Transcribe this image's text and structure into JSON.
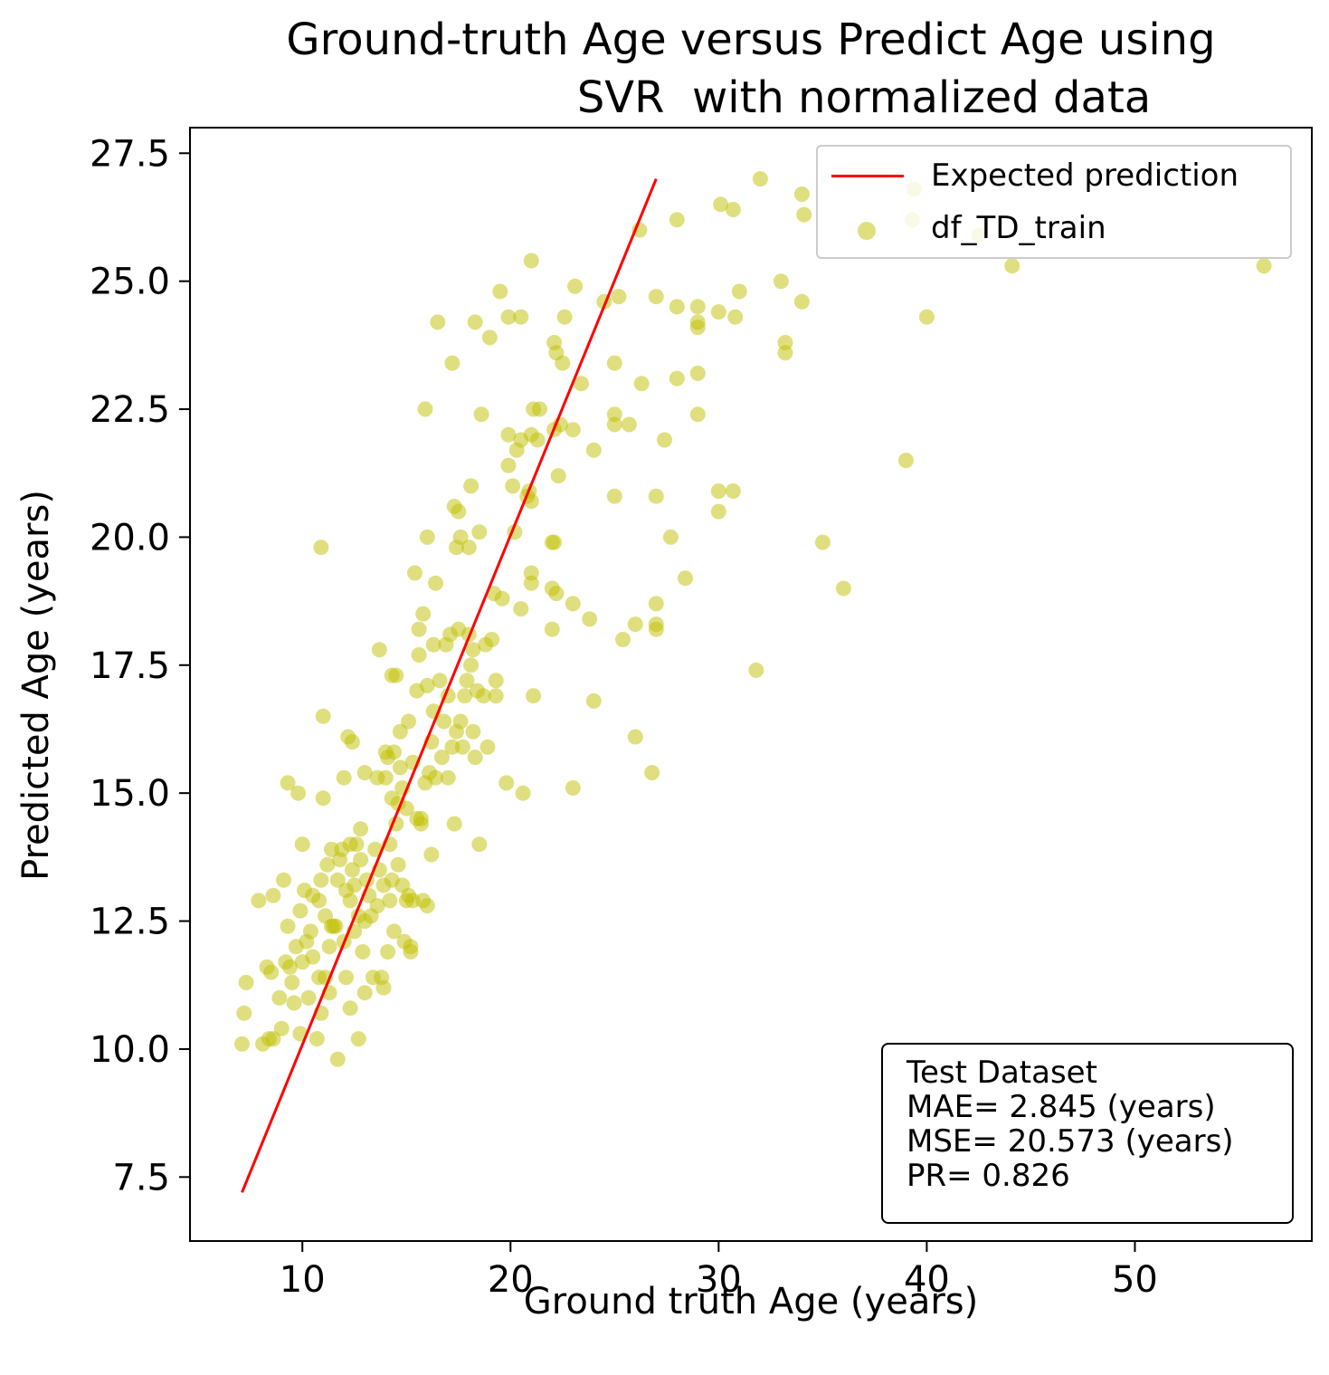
{
  "chart_data": {
    "type": "scatter",
    "title_lines": [
      "Ground-truth Age versus Predict Age using",
      "SVR  with normalized data"
    ],
    "xlabel": "Ground truth Age (years)",
    "ylabel": "Predicted Age (years)",
    "xlim": [
      4.6,
      58.5
    ],
    "ylim": [
      6.25,
      28.0
    ],
    "x_ticks": [
      10,
      20,
      30,
      40,
      50
    ],
    "y_ticks": [
      7.5,
      10.0,
      12.5,
      15.0,
      17.5,
      20.0,
      22.5,
      25.0,
      27.5
    ],
    "grid": false,
    "legend_position": "upper right",
    "legend": [
      "Expected prediction",
      "df_TD_train"
    ],
    "colors": {
      "line": "#ff0000",
      "points": "#bfbf00"
    },
    "line": {
      "name": "Expected prediction",
      "x": [
        7.1,
        27.0
      ],
      "y": [
        7.2,
        27.0
      ]
    },
    "series": [
      {
        "name": "df_TD_train",
        "points": [
          [
            7.1,
            10.1
          ],
          [
            7.2,
            10.7
          ],
          [
            7.3,
            11.3
          ],
          [
            7.9,
            12.9
          ],
          [
            8.1,
            10.1
          ],
          [
            8.3,
            11.6
          ],
          [
            8.4,
            10.2
          ],
          [
            8.5,
            11.5
          ],
          [
            8.6,
            13.0
          ],
          [
            8.6,
            10.2
          ],
          [
            8.9,
            11.0
          ],
          [
            9.0,
            10.4
          ],
          [
            9.1,
            13.3
          ],
          [
            9.2,
            11.7
          ],
          [
            9.3,
            12.4
          ],
          [
            9.3,
            15.2
          ],
          [
            9.4,
            11.6
          ],
          [
            9.5,
            11.3
          ],
          [
            9.6,
            10.9
          ],
          [
            9.7,
            12.0
          ],
          [
            9.8,
            15.0
          ],
          [
            9.9,
            10.3
          ],
          [
            9.9,
            12.7
          ],
          [
            10.0,
            11.7
          ],
          [
            10.0,
            14.0
          ],
          [
            10.1,
            13.1
          ],
          [
            10.2,
            12.1
          ],
          [
            10.3,
            11.0
          ],
          [
            10.4,
            12.3
          ],
          [
            10.5,
            13.0
          ],
          [
            10.5,
            11.8
          ],
          [
            10.7,
            10.2
          ],
          [
            10.8,
            11.4
          ],
          [
            10.8,
            12.9
          ],
          [
            10.9,
            10.7
          ],
          [
            10.9,
            13.3
          ],
          [
            10.9,
            19.8
          ],
          [
            11.0,
            14.9
          ],
          [
            11.0,
            16.5
          ],
          [
            11.1,
            12.6
          ],
          [
            11.1,
            11.4
          ],
          [
            11.2,
            13.6
          ],
          [
            11.3,
            12.0
          ],
          [
            11.3,
            11.1
          ],
          [
            11.4,
            13.9
          ],
          [
            11.4,
            12.4
          ],
          [
            11.5,
            12.4
          ],
          [
            11.6,
            12.4
          ],
          [
            11.7,
            9.8
          ],
          [
            11.7,
            13.3
          ],
          [
            11.8,
            13.7
          ],
          [
            11.9,
            13.9
          ],
          [
            12.0,
            12.1
          ],
          [
            12.0,
            15.3
          ],
          [
            12.1,
            11.4
          ],
          [
            12.1,
            13.1
          ],
          [
            12.2,
            16.1
          ],
          [
            12.3,
            14.0
          ],
          [
            12.3,
            12.9
          ],
          [
            12.3,
            10.8
          ],
          [
            12.4,
            13.5
          ],
          [
            12.4,
            16.0
          ],
          [
            12.5,
            12.3
          ],
          [
            12.5,
            13.2
          ],
          [
            12.6,
            14.0
          ],
          [
            12.7,
            12.6
          ],
          [
            12.7,
            10.2
          ],
          [
            12.8,
            13.7
          ],
          [
            12.8,
            14.3
          ],
          [
            12.9,
            11.9
          ],
          [
            13.0,
            11.1
          ],
          [
            13.0,
            12.5
          ],
          [
            13.0,
            15.4
          ],
          [
            13.1,
            13.3
          ],
          [
            13.2,
            13.0
          ],
          [
            13.3,
            12.6
          ],
          [
            13.4,
            11.4
          ],
          [
            13.5,
            13.9
          ],
          [
            13.6,
            12.8
          ],
          [
            13.6,
            15.3
          ],
          [
            13.7,
            17.8
          ],
          [
            13.7,
            13.5
          ],
          [
            13.8,
            11.4
          ],
          [
            13.9,
            11.2
          ],
          [
            13.9,
            13.2
          ],
          [
            14.0,
            15.8
          ],
          [
            14.0,
            15.3
          ],
          [
            14.1,
            11.9
          ],
          [
            14.1,
            15.7
          ],
          [
            14.2,
            12.9
          ],
          [
            14.2,
            14.0
          ],
          [
            14.3,
            17.3
          ],
          [
            14.3,
            13.3
          ],
          [
            14.3,
            14.9
          ],
          [
            14.4,
            12.3
          ],
          [
            14.4,
            15.8
          ],
          [
            14.5,
            17.3
          ],
          [
            14.5,
            14.4
          ],
          [
            14.6,
            14.8
          ],
          [
            14.6,
            13.6
          ],
          [
            14.7,
            15.5
          ],
          [
            14.7,
            16.2
          ],
          [
            14.8,
            13.2
          ],
          [
            14.8,
            15.1
          ],
          [
            14.9,
            12.1
          ],
          [
            15.0,
            12.9
          ],
          [
            15.0,
            14.7
          ],
          [
            15.1,
            13.0
          ],
          [
            15.1,
            16.4
          ],
          [
            15.2,
            12.0
          ],
          [
            15.2,
            11.9
          ],
          [
            15.3,
            15.6
          ],
          [
            15.3,
            12.9
          ],
          [
            15.4,
            19.3
          ],
          [
            15.5,
            14.5
          ],
          [
            15.5,
            17.0
          ],
          [
            15.6,
            18.2
          ],
          [
            15.6,
            17.7
          ],
          [
            15.7,
            14.4
          ],
          [
            15.7,
            14.5
          ],
          [
            15.8,
            12.9
          ],
          [
            15.8,
            18.5
          ],
          [
            15.9,
            15.2
          ],
          [
            15.9,
            22.5
          ],
          [
            16.0,
            12.8
          ],
          [
            16.0,
            17.1
          ],
          [
            16.0,
            20.0
          ],
          [
            16.1,
            15.4
          ],
          [
            16.2,
            13.8
          ],
          [
            16.2,
            16.0
          ],
          [
            16.3,
            17.9
          ],
          [
            16.3,
            16.6
          ],
          [
            16.4,
            19.1
          ],
          [
            16.4,
            15.3
          ],
          [
            16.5,
            24.2
          ],
          [
            16.6,
            17.2
          ],
          [
            16.7,
            15.7
          ],
          [
            16.8,
            16.4
          ],
          [
            16.9,
            17.9
          ],
          [
            17.0,
            16.9
          ],
          [
            17.0,
            15.3
          ],
          [
            17.1,
            18.1
          ],
          [
            17.2,
            23.4
          ],
          [
            17.2,
            15.9
          ],
          [
            17.3,
            20.6
          ],
          [
            17.3,
            14.4
          ],
          [
            17.4,
            16.2
          ],
          [
            17.4,
            19.8
          ],
          [
            17.5,
            20.5
          ],
          [
            17.5,
            18.2
          ],
          [
            17.6,
            20.0
          ],
          [
            17.6,
            16.4
          ],
          [
            17.7,
            15.9
          ],
          [
            17.8,
            16.9
          ],
          [
            17.9,
            17.2
          ],
          [
            18.0,
            19.8
          ],
          [
            18.0,
            18.1
          ],
          [
            18.1,
            21.0
          ],
          [
            18.1,
            17.5
          ],
          [
            18.2,
            16.2
          ],
          [
            18.2,
            17.8
          ],
          [
            18.3,
            24.2
          ],
          [
            18.3,
            15.7
          ],
          [
            18.4,
            17.0
          ],
          [
            18.5,
            20.1
          ],
          [
            18.5,
            14.0
          ],
          [
            18.6,
            22.4
          ],
          [
            18.7,
            16.9
          ],
          [
            18.8,
            17.9
          ],
          [
            18.9,
            15.9
          ],
          [
            19.0,
            23.9
          ],
          [
            19.1,
            18.0
          ],
          [
            19.2,
            18.9
          ],
          [
            19.3,
            16.9
          ],
          [
            19.3,
            17.2
          ],
          [
            19.5,
            24.8
          ],
          [
            19.6,
            18.8
          ],
          [
            19.8,
            15.2
          ],
          [
            19.9,
            21.4
          ],
          [
            19.9,
            24.3
          ],
          [
            19.9,
            22.0
          ],
          [
            20.1,
            21.0
          ],
          [
            20.2,
            20.1
          ],
          [
            20.3,
            21.7
          ],
          [
            20.5,
            21.9
          ],
          [
            20.5,
            24.3
          ],
          [
            20.5,
            18.6
          ],
          [
            20.6,
            15.0
          ],
          [
            20.8,
            20.8
          ],
          [
            20.9,
            20.9
          ],
          [
            21.0,
            20.7
          ],
          [
            21.0,
            19.3
          ],
          [
            21.0,
            22.0
          ],
          [
            21.0,
            25.4
          ],
          [
            21.0,
            19.1
          ],
          [
            21.1,
            22.5
          ],
          [
            21.1,
            16.9
          ],
          [
            21.3,
            21.9
          ],
          [
            21.4,
            22.5
          ],
          [
            22.0,
            18.2
          ],
          [
            22.0,
            19.0
          ],
          [
            22.0,
            19.9
          ],
          [
            22.1,
            19.9
          ],
          [
            22.1,
            23.8
          ],
          [
            22.1,
            22.1
          ],
          [
            22.2,
            23.6
          ],
          [
            22.2,
            18.9
          ],
          [
            22.3,
            21.2
          ],
          [
            22.4,
            22.2
          ],
          [
            22.5,
            23.4
          ],
          [
            22.6,
            24.3
          ],
          [
            23.0,
            22.1
          ],
          [
            23.0,
            15.1
          ],
          [
            23.0,
            18.7
          ],
          [
            23.1,
            24.9
          ],
          [
            23.4,
            23.0
          ],
          [
            23.8,
            18.4
          ],
          [
            24.0,
            21.7
          ],
          [
            24.0,
            16.8
          ],
          [
            24.5,
            24.6
          ],
          [
            25.0,
            20.8
          ],
          [
            25.0,
            22.2
          ],
          [
            25.0,
            22.4
          ],
          [
            25.0,
            23.4
          ],
          [
            25.2,
            24.7
          ],
          [
            25.4,
            18.0
          ],
          [
            25.7,
            22.2
          ],
          [
            26.0,
            18.3
          ],
          [
            26.0,
            16.1
          ],
          [
            26.2,
            26.0
          ],
          [
            26.3,
            23.0
          ],
          [
            26.8,
            15.4
          ],
          [
            27.0,
            24.7
          ],
          [
            27.0,
            18.7
          ],
          [
            27.0,
            18.3
          ],
          [
            27.0,
            20.8
          ],
          [
            27.0,
            18.2
          ],
          [
            27.4,
            21.9
          ],
          [
            27.7,
            20.0
          ],
          [
            28.0,
            23.1
          ],
          [
            28.0,
            26.2
          ],
          [
            28.0,
            24.5
          ],
          [
            28.4,
            19.2
          ],
          [
            29.0,
            24.5
          ],
          [
            29.0,
            24.2
          ],
          [
            29.0,
            24.1
          ],
          [
            29.0,
            23.2
          ],
          [
            29.0,
            22.4
          ],
          [
            30.0,
            24.4
          ],
          [
            30.0,
            20.9
          ],
          [
            30.0,
            20.5
          ],
          [
            30.1,
            26.5
          ],
          [
            30.7,
            26.4
          ],
          [
            30.7,
            20.9
          ],
          [
            30.8,
            24.3
          ],
          [
            31.0,
            24.8
          ],
          [
            31.8,
            17.4
          ],
          [
            32.0,
            27.0
          ],
          [
            33.0,
            25.0
          ],
          [
            33.2,
            23.8
          ],
          [
            33.2,
            23.6
          ],
          [
            34.0,
            26.7
          ],
          [
            34.1,
            26.3
          ],
          [
            34.0,
            24.6
          ],
          [
            35.0,
            19.9
          ],
          [
            36.0,
            19.0
          ],
          [
            39.0,
            21.5
          ],
          [
            39.4,
            26.8
          ],
          [
            39.3,
            26.2
          ],
          [
            40.0,
            24.3
          ],
          [
            42.5,
            25.9
          ],
          [
            44.1,
            25.3
          ],
          [
            56.2,
            25.3
          ]
        ]
      }
    ],
    "annotation": [
      "Test Dataset",
      "MAE= 2.845 (years)",
      "MSE= 20.573 (years)",
      "PR= 0.826"
    ]
  }
}
